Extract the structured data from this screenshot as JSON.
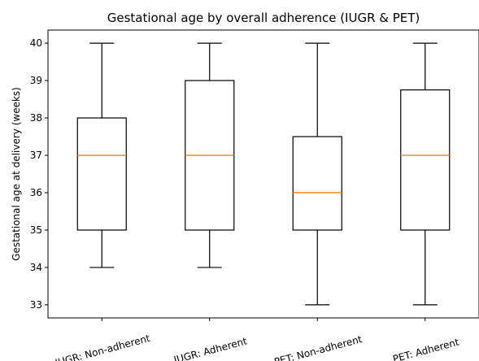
{
  "chart_data": {
    "type": "box",
    "title": "Gestational age by overall adherence (IUGR & PET)",
    "xlabel": "",
    "ylabel": "Gestational age at delivery (weeks)",
    "ylim": [
      32.65,
      40.35
    ],
    "yticks": [
      33,
      34,
      35,
      36,
      37,
      38,
      39,
      40
    ],
    "grid": false,
    "categories": [
      "IUGR: Non-adherent",
      "IUGR: Adherent",
      "PET: Non-adherent",
      "PET: Adherent"
    ],
    "boxes": [
      {
        "category": "IUGR: Non-adherent",
        "min": 34,
        "q1": 35,
        "median": 37,
        "q3": 38,
        "max": 40
      },
      {
        "category": "IUGR: Adherent",
        "min": 34,
        "q1": 35,
        "median": 37,
        "q3": 39,
        "max": 40
      },
      {
        "category": "PET: Non-adherent",
        "min": 33,
        "q1": 35,
        "median": 36,
        "q3": 37.5,
        "max": 40
      },
      {
        "category": "PET: Adherent",
        "min": 33,
        "q1": 35,
        "median": 37,
        "q3": 38.75,
        "max": 40
      }
    ],
    "colors": {
      "box": "#000000",
      "median": "#ff7f0e",
      "axes": "#000000"
    }
  }
}
